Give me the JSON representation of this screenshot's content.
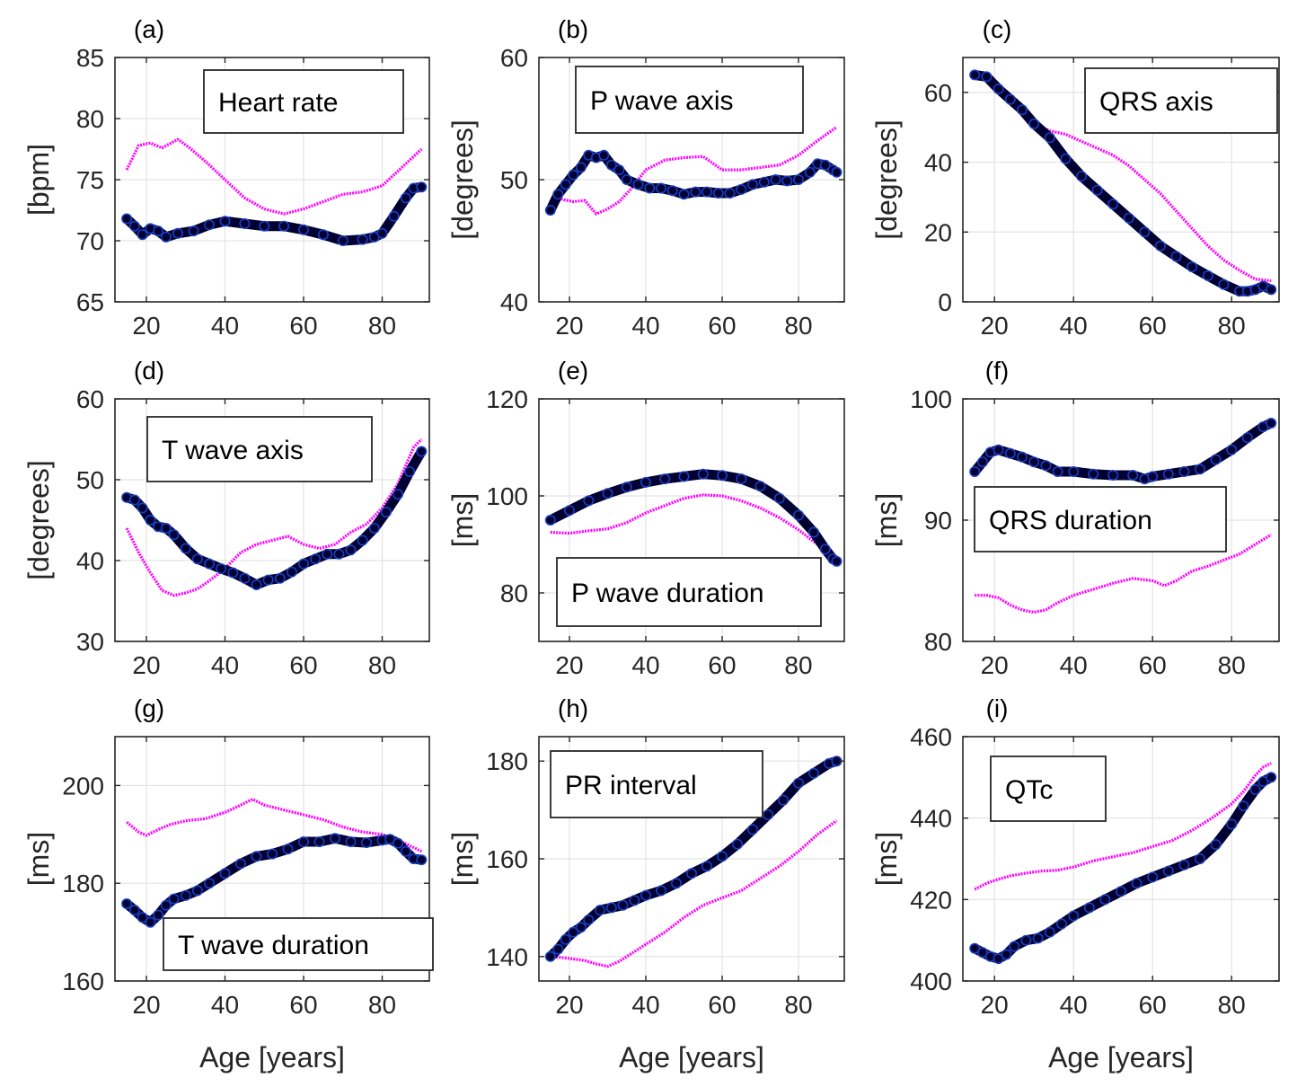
{
  "figure": {
    "colors": {
      "series_1": "#ff00ff",
      "series_2": "#000033",
      "series_2_edge": "#1a3fbf"
    },
    "legend_position": "inside"
  },
  "chart_data": [
    {
      "panel": "(a)",
      "type": "line",
      "title": "Heart rate",
      "legend_position": "top-right",
      "xlabel": "",
      "ylabel": "[bpm]",
      "xlim": [
        12,
        92
      ],
      "ylim": [
        65,
        85
      ],
      "xticks": [
        20,
        40,
        60,
        80
      ],
      "yticks": [
        65,
        70,
        75,
        80,
        85
      ],
      "series": [
        {
          "name": "series_1",
          "x": [
            15,
            18,
            21,
            24,
            28,
            31,
            35,
            40,
            45,
            50,
            55,
            60,
            65,
            70,
            75,
            80,
            85,
            90
          ],
          "values": [
            75.8,
            77.8,
            78.0,
            77.6,
            78.3,
            77.6,
            76.5,
            75.0,
            73.5,
            72.6,
            72.2,
            72.6,
            73.2,
            73.8,
            74.0,
            74.5,
            76.0,
            77.5
          ]
        },
        {
          "name": "series_2",
          "x": [
            15,
            17,
            19,
            21,
            23,
            25,
            28,
            32,
            36,
            40,
            45,
            50,
            55,
            60,
            65,
            70,
            75,
            78,
            80,
            83,
            86,
            88,
            90
          ],
          "values": [
            71.8,
            71.2,
            70.5,
            71.0,
            70.8,
            70.3,
            70.6,
            70.8,
            71.3,
            71.6,
            71.4,
            71.2,
            71.2,
            70.9,
            70.5,
            70.0,
            70.1,
            70.3,
            70.6,
            72.0,
            73.5,
            74.3,
            74.4
          ]
        }
      ]
    },
    {
      "panel": "(b)",
      "type": "line",
      "title": "P wave axis",
      "legend_position": "top-center",
      "xlabel": "",
      "ylabel": "[degrees]",
      "xlim": [
        12,
        92
      ],
      "ylim": [
        40,
        60
      ],
      "xticks": [
        20,
        40,
        60,
        80
      ],
      "yticks": [
        40,
        50,
        60
      ],
      "series": [
        {
          "name": "series_1",
          "x": [
            15,
            18,
            21,
            24,
            27,
            30,
            33,
            36,
            40,
            45,
            50,
            55,
            60,
            65,
            70,
            75,
            80,
            85,
            90
          ],
          "values": [
            48.0,
            48.4,
            48.2,
            48.3,
            47.2,
            47.6,
            48.2,
            49.2,
            50.8,
            51.6,
            51.8,
            51.9,
            50.8,
            50.8,
            51.0,
            51.2,
            52.0,
            53.2,
            54.3
          ]
        },
        {
          "name": "series_2",
          "x": [
            15,
            17,
            19,
            21,
            23,
            25,
            27,
            29,
            31,
            33,
            35,
            38,
            41,
            44,
            47,
            50,
            53,
            56,
            59,
            62,
            65,
            68,
            71,
            74,
            77,
            80,
            83,
            85,
            87,
            89,
            90
          ],
          "values": [
            47.5,
            48.8,
            49.6,
            50.4,
            51.0,
            52.0,
            51.8,
            52.0,
            51.2,
            50.8,
            50.0,
            49.6,
            49.3,
            49.3,
            49.1,
            48.8,
            49.0,
            49.0,
            48.9,
            48.9,
            49.2,
            49.6,
            49.8,
            50.0,
            49.9,
            50.0,
            50.6,
            51.3,
            51.2,
            50.8,
            50.6
          ]
        }
      ]
    },
    {
      "panel": "(c)",
      "type": "line",
      "title": "QRS axis",
      "legend_position": "top-right",
      "xlabel": "",
      "ylabel": "[degrees]",
      "xlim": [
        12,
        92
      ],
      "ylim": [
        0,
        70
      ],
      "xticks": [
        20,
        40,
        60,
        80
      ],
      "yticks": [
        0,
        20,
        40,
        60
      ],
      "series": [
        {
          "name": "series_1",
          "x": [
            15,
            18,
            21,
            24,
            27,
            30,
            34,
            38,
            42,
            46,
            50,
            54,
            58,
            62,
            66,
            70,
            74,
            78,
            82,
            86,
            90
          ],
          "values": [
            65.0,
            64.0,
            61.0,
            57.0,
            54.0,
            51.0,
            49.0,
            48.0,
            46.0,
            44.0,
            42.0,
            39.0,
            35.0,
            31.0,
            26.0,
            21.0,
            16.0,
            12.0,
            9.0,
            6.5,
            6.0
          ]
        },
        {
          "name": "series_2",
          "x": [
            15,
            18,
            21,
            24,
            27,
            30,
            34,
            38,
            42,
            46,
            50,
            54,
            58,
            62,
            66,
            70,
            74,
            78,
            82,
            84,
            86,
            88,
            90
          ],
          "values": [
            65.0,
            64.5,
            61.0,
            58.0,
            55.0,
            51.0,
            47.0,
            41.0,
            36.0,
            32.0,
            28.0,
            24.0,
            20.0,
            16.0,
            13.0,
            10.0,
            7.5,
            5.0,
            3.0,
            3.0,
            3.5,
            4.5,
            3.5
          ]
        }
      ]
    },
    {
      "panel": "(d)",
      "type": "line",
      "title": "T wave axis",
      "legend_position": "top-left",
      "xlabel": "",
      "ylabel": "[degrees]",
      "xlim": [
        12,
        92
      ],
      "ylim": [
        30,
        60
      ],
      "xticks": [
        20,
        40,
        60,
        80
      ],
      "yticks": [
        30,
        40,
        50,
        60
      ],
      "series": [
        {
          "name": "series_1",
          "x": [
            15,
            18,
            21,
            24,
            27,
            30,
            33,
            36,
            40,
            44,
            48,
            52,
            56,
            60,
            64,
            68,
            72,
            76,
            80,
            84,
            88,
            90
          ],
          "values": [
            44.0,
            41.0,
            38.5,
            36.3,
            35.7,
            36.0,
            36.5,
            37.5,
            39.0,
            41.0,
            42.0,
            42.5,
            43.0,
            42.0,
            41.5,
            42.0,
            43.5,
            44.5,
            46.5,
            49.5,
            54.0,
            55.0
          ]
        },
        {
          "name": "series_2",
          "x": [
            15,
            17,
            19,
            21,
            23,
            25,
            27,
            30,
            33,
            36,
            39,
            42,
            45,
            48,
            51,
            54,
            57,
            60,
            63,
            66,
            69,
            72,
            75,
            78,
            81,
            84,
            87,
            90
          ],
          "values": [
            47.8,
            47.5,
            46.5,
            45.0,
            44.2,
            44.0,
            43.2,
            41.5,
            40.2,
            39.6,
            39.0,
            38.5,
            37.8,
            37.0,
            37.6,
            37.8,
            38.6,
            39.6,
            40.2,
            40.8,
            40.8,
            41.3,
            42.5,
            44.0,
            46.0,
            48.2,
            51.0,
            53.5
          ]
        }
      ]
    },
    {
      "panel": "(e)",
      "type": "line",
      "title": "P wave duration",
      "legend_position": "bottom-center",
      "xlabel": "",
      "ylabel": "[ms]",
      "xlim": [
        12,
        92
      ],
      "ylim": [
        70,
        120
      ],
      "xticks": [
        20,
        40,
        60,
        80
      ],
      "yticks": [
        80,
        100,
        120
      ],
      "series": [
        {
          "name": "series_1",
          "x": [
            15,
            20,
            25,
            30,
            35,
            40,
            45,
            50,
            55,
            60,
            65,
            70,
            75,
            80,
            85,
            90
          ],
          "values": [
            92.5,
            92.3,
            92.8,
            93.2,
            94.5,
            96.5,
            98.0,
            99.5,
            100.2,
            100.0,
            99.0,
            97.5,
            95.5,
            93.0,
            90.0,
            86.0
          ]
        },
        {
          "name": "series_2",
          "x": [
            15,
            20,
            25,
            30,
            35,
            40,
            45,
            50,
            55,
            60,
            65,
            70,
            75,
            80,
            84,
            87,
            89,
            90
          ],
          "values": [
            95.0,
            97.0,
            99.0,
            100.5,
            101.8,
            102.8,
            103.5,
            104.0,
            104.5,
            104.2,
            103.5,
            102.0,
            99.5,
            96.0,
            92.5,
            89.0,
            87.0,
            86.5
          ]
        }
      ]
    },
    {
      "panel": "(f)",
      "type": "line",
      "title": "QRS duration",
      "legend_position": "center-left",
      "xlabel": "",
      "ylabel": "[ms]",
      "xlim": [
        12,
        92
      ],
      "ylim": [
        80,
        100
      ],
      "xticks": [
        20,
        40,
        60,
        80
      ],
      "yticks": [
        80,
        90,
        100
      ],
      "series": [
        {
          "name": "series_1",
          "x": [
            15,
            18,
            21,
            24,
            27,
            30,
            33,
            36,
            40,
            45,
            50,
            55,
            60,
            63,
            66,
            70,
            74,
            78,
            82,
            86,
            90
          ],
          "values": [
            83.8,
            83.8,
            83.6,
            83.0,
            82.6,
            82.4,
            82.6,
            83.2,
            83.8,
            84.3,
            84.8,
            85.2,
            85.0,
            84.6,
            85.0,
            85.8,
            86.2,
            86.7,
            87.2,
            88.0,
            88.8
          ]
        },
        {
          "name": "series_2",
          "x": [
            15,
            17,
            19,
            21,
            24,
            27,
            30,
            33,
            36,
            40,
            45,
            50,
            55,
            58,
            60,
            64,
            68,
            72,
            76,
            80,
            84,
            88,
            90
          ],
          "values": [
            94.0,
            94.8,
            95.6,
            95.8,
            95.5,
            95.2,
            94.8,
            94.5,
            94.0,
            94.0,
            93.8,
            93.7,
            93.7,
            93.4,
            93.6,
            93.8,
            94.0,
            94.2,
            95.0,
            95.8,
            96.8,
            97.7,
            98.0
          ]
        }
      ]
    },
    {
      "panel": "(g)",
      "type": "line",
      "title": "T wave duration",
      "legend_position": "bottom-center",
      "xlabel": "Age [years]",
      "ylabel": "[ms]",
      "xlim": [
        12,
        92
      ],
      "ylim": [
        160,
        210
      ],
      "xticks": [
        20,
        40,
        60,
        80
      ],
      "yticks": [
        160,
        180,
        200
      ],
      "series": [
        {
          "name": "series_1",
          "x": [
            15,
            18,
            20,
            23,
            26,
            30,
            35,
            40,
            44,
            47,
            50,
            55,
            60,
            65,
            70,
            75,
            80,
            85,
            90
          ],
          "values": [
            192.5,
            190.5,
            189.8,
            191.0,
            192.0,
            192.8,
            193.2,
            194.5,
            196.0,
            197.2,
            196.0,
            195.0,
            194.0,
            193.0,
            191.5,
            190.5,
            190.0,
            188.5,
            186.5
          ]
        },
        {
          "name": "series_2",
          "x": [
            15,
            17,
            19,
            21,
            23,
            25,
            27,
            30,
            33,
            36,
            40,
            44,
            48,
            52,
            56,
            60,
            64,
            68,
            72,
            76,
            80,
            82,
            84,
            86,
            88,
            90
          ],
          "values": [
            175.8,
            174.5,
            173.0,
            172.0,
            173.5,
            175.5,
            176.8,
            177.5,
            178.5,
            180.0,
            182.0,
            184.0,
            185.5,
            186.0,
            187.0,
            188.5,
            188.5,
            189.2,
            188.5,
            188.3,
            188.8,
            189.0,
            188.2,
            186.5,
            185.0,
            184.8
          ]
        }
      ]
    },
    {
      "panel": "(h)",
      "type": "line",
      "title": "PR interval",
      "legend_position": "top-left",
      "xlabel": "Age [years]",
      "ylabel": "[ms]",
      "xlim": [
        12,
        92
      ],
      "ylim": [
        135,
        185
      ],
      "xticks": [
        20,
        40,
        60,
        80
      ],
      "yticks": [
        140,
        160,
        180
      ],
      "series": [
        {
          "name": "series_1",
          "x": [
            15,
            18,
            21,
            24,
            27,
            30,
            33,
            36,
            40,
            45,
            50,
            55,
            60,
            65,
            70,
            75,
            80,
            85,
            90
          ],
          "values": [
            140.0,
            139.8,
            139.5,
            139.2,
            138.5,
            138.0,
            139.0,
            140.5,
            142.5,
            145.0,
            148.0,
            150.5,
            152.0,
            153.5,
            156.0,
            158.5,
            161.5,
            165.0,
            167.8
          ]
        },
        {
          "name": "series_2",
          "x": [
            15,
            17,
            19,
            21,
            23,
            25,
            28,
            31,
            34,
            37,
            40,
            44,
            48,
            52,
            56,
            60,
            64,
            68,
            72,
            76,
            80,
            84,
            88,
            90
          ],
          "values": [
            140.0,
            141.5,
            143.5,
            145.0,
            146.0,
            147.5,
            149.5,
            150.0,
            150.5,
            151.5,
            152.5,
            153.5,
            155.0,
            157.0,
            158.5,
            160.5,
            163.0,
            166.0,
            169.0,
            172.0,
            175.5,
            177.5,
            179.5,
            180.0
          ]
        }
      ]
    },
    {
      "panel": "(i)",
      "type": "line",
      "title": "QTc",
      "legend_position": "top-left",
      "xlabel": "Age [years]",
      "ylabel": "[ms]",
      "xlim": [
        12,
        92
      ],
      "ylim": [
        400,
        460
      ],
      "xticks": [
        20,
        40,
        60,
        80
      ],
      "yticks": [
        400,
        420,
        440,
        460
      ],
      "series": [
        {
          "name": "series_1",
          "x": [
            15,
            18,
            21,
            24,
            28,
            32,
            36,
            40,
            45,
            50,
            55,
            60,
            65,
            70,
            75,
            80,
            83,
            86,
            88,
            90
          ],
          "values": [
            422.5,
            424.0,
            425.0,
            425.8,
            426.5,
            427.0,
            427.2,
            428.0,
            429.5,
            430.5,
            431.5,
            433.0,
            434.5,
            437.0,
            440.0,
            443.5,
            446.5,
            450.5,
            452.5,
            453.5
          ]
        },
        {
          "name": "series_2",
          "x": [
            15,
            17,
            19,
            21,
            23,
            25,
            28,
            31,
            34,
            37,
            40,
            44,
            48,
            52,
            56,
            60,
            64,
            68,
            72,
            76,
            80,
            83,
            86,
            88,
            90
          ],
          "values": [
            408.0,
            407.0,
            406.0,
            405.5,
            406.5,
            408.5,
            410.0,
            410.5,
            412.0,
            414.0,
            416.0,
            418.0,
            420.0,
            422.0,
            424.0,
            425.5,
            427.0,
            428.5,
            430.0,
            433.5,
            438.5,
            443.0,
            447.0,
            449.0,
            450.0
          ]
        }
      ]
    }
  ]
}
